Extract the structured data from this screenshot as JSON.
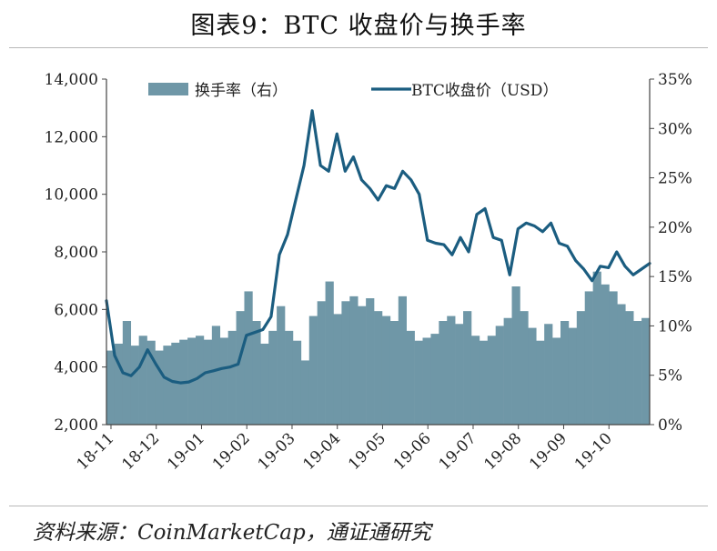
{
  "title": "图表9：BTC 收盘价与换手率",
  "source": "资料来源：CoinMarketCap，通证通研究",
  "colors": {
    "turnover": "#6f97a7",
    "price": "#1b5d80",
    "axis": "#444444",
    "rule": "#b8b8b8"
  },
  "chart_data": {
    "type": "bar+line",
    "title": "图表9：BTC 收盘价与换手率",
    "legend_position": "top",
    "grid": false,
    "x_ticks": [
      "18-11",
      "18-12",
      "19-01",
      "19-02",
      "19-03",
      "19-04",
      "19-05",
      "19-06",
      "19-07",
      "19-08",
      "19-09",
      "19-10"
    ],
    "y_left": {
      "label": "",
      "range": [
        2000,
        14000
      ],
      "ticks": [
        "2,000",
        "4,000",
        "6,000",
        "8,000",
        "10,000",
        "12,000",
        "14,000"
      ]
    },
    "y_right": {
      "label": "",
      "range": [
        0,
        35
      ],
      "ticks": [
        "0%",
        "5%",
        "10%",
        "15%",
        "20%",
        "25%",
        "30%",
        "35%"
      ]
    },
    "series": [
      {
        "name": "换手率（右）",
        "type": "bar",
        "axis": "right",
        "values": [
          7.5,
          8.2,
          10.5,
          8.0,
          9.0,
          8.5,
          7.5,
          8.0,
          8.3,
          8.6,
          8.8,
          9.0,
          8.6,
          10.0,
          8.8,
          9.5,
          11.5,
          13.5,
          10.5,
          8.2,
          9.5,
          12.0,
          9.5,
          8.5,
          6.5,
          11.0,
          12.5,
          14.5,
          11.2,
          12.5,
          13.0,
          12.0,
          12.8,
          11.5,
          11.0,
          10.5,
          13.0,
          9.5,
          8.5,
          8.8,
          9.2,
          10.5,
          11.0,
          10.2,
          11.5,
          9.0,
          8.5,
          9.0,
          10.0,
          10.8,
          14.0,
          11.5,
          9.8,
          8.5,
          10.2,
          8.8,
          10.5,
          9.8,
          11.5,
          13.5,
          15.5,
          14.2,
          13.5,
          12.2,
          11.5,
          10.5,
          10.8
        ]
      },
      {
        "name": "BTC收盘价（USD）",
        "type": "line",
        "axis": "left",
        "values": [
          6300,
          4400,
          3800,
          3700,
          4000,
          4600,
          4100,
          3650,
          3500,
          3450,
          3480,
          3600,
          3800,
          3870,
          3950,
          4000,
          4100,
          5100,
          5200,
          5300,
          5750,
          7900,
          8600,
          9800,
          11000,
          12900,
          11000,
          10800,
          12100,
          10800,
          11300,
          10500,
          10200,
          9800,
          10300,
          10200,
          10800,
          10500,
          10000,
          8400,
          8300,
          8250,
          7900,
          8500,
          8000,
          9300,
          9500,
          8500,
          8400,
          7200,
          8800,
          9000,
          8900,
          8700,
          9000,
          8300,
          8200,
          7700,
          7400,
          7000,
          7500,
          7450,
          8000,
          7500,
          7200,
          7400,
          7600
        ]
      }
    ]
  }
}
